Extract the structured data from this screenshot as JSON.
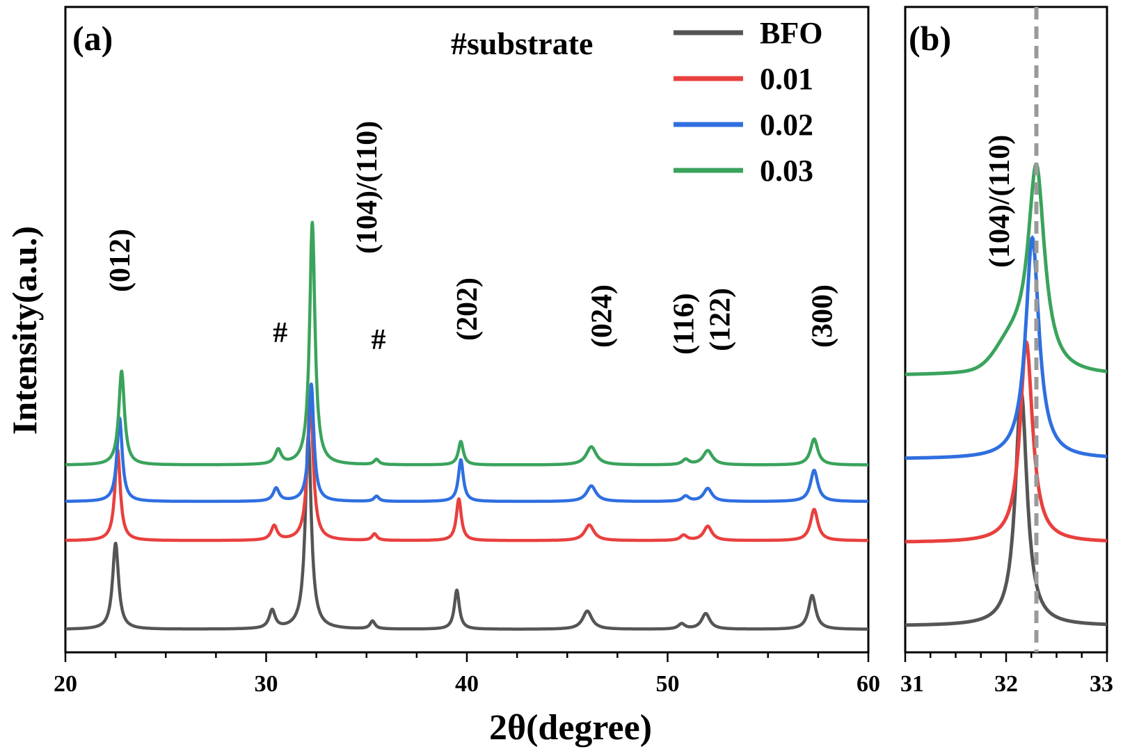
{
  "chart_data": [
    {
      "panel_label": "(a)",
      "type": "line",
      "xlabel": "2θ(degree)",
      "ylabel": "Intensity(a.u.)",
      "xlim": [
        20,
        60
      ],
      "xticks": [
        20,
        30,
        40,
        50,
        60
      ],
      "tick_labels": [
        "20",
        "30",
        "40",
        "50",
        "60"
      ],
      "yticks_shown": false,
      "grid": false,
      "legend_placement": "top-right",
      "substrate_note": "#substrate",
      "colors": {
        "BFO": "#555555",
        "0.01": "#e8403e",
        "0.02": "#2f6fe0",
        "0.03": "#3aa35c"
      },
      "series": [
        {
          "name": "BFO",
          "baseline": 0.0,
          "peaks": [
            {
              "x": 22.5,
              "height": 3.3,
              "width": 0.18
            },
            {
              "x": 30.3,
              "height": 0.7,
              "width": 0.18
            },
            {
              "x": 32.1,
              "height": 7.4,
              "width": 0.18
            },
            {
              "x": 35.3,
              "height": 0.3,
              "width": 0.15
            },
            {
              "x": 39.5,
              "height": 1.5,
              "width": 0.15
            },
            {
              "x": 46.0,
              "height": 0.7,
              "width": 0.28
            },
            {
              "x": 50.7,
              "height": 0.2,
              "width": 0.2
            },
            {
              "x": 51.9,
              "height": 0.6,
              "width": 0.25
            },
            {
              "x": 57.2,
              "height": 1.3,
              "width": 0.22
            }
          ]
        },
        {
          "name": "0.01",
          "baseline": 3.4,
          "peaks": [
            {
              "x": 22.6,
              "height": 3.5,
              "width": 0.16
            },
            {
              "x": 30.4,
              "height": 0.55,
              "width": 0.18
            },
            {
              "x": 32.2,
              "height": 5.5,
              "width": 0.17
            },
            {
              "x": 35.4,
              "height": 0.25,
              "width": 0.15
            },
            {
              "x": 39.6,
              "height": 1.6,
              "width": 0.15
            },
            {
              "x": 46.1,
              "height": 0.6,
              "width": 0.28
            },
            {
              "x": 50.8,
              "height": 0.2,
              "width": 0.2
            },
            {
              "x": 52.0,
              "height": 0.55,
              "width": 0.25
            },
            {
              "x": 57.3,
              "height": 1.2,
              "width": 0.22
            }
          ]
        },
        {
          "name": "0.02",
          "baseline": 4.9,
          "peaks": [
            {
              "x": 22.7,
              "height": 3.2,
              "width": 0.16
            },
            {
              "x": 30.5,
              "height": 0.5,
              "width": 0.18
            },
            {
              "x": 32.25,
              "height": 4.5,
              "width": 0.15
            },
            {
              "x": 35.5,
              "height": 0.2,
              "width": 0.15
            },
            {
              "x": 39.7,
              "height": 1.6,
              "width": 0.15
            },
            {
              "x": 46.2,
              "height": 0.6,
              "width": 0.28
            },
            {
              "x": 50.9,
              "height": 0.2,
              "width": 0.2
            },
            {
              "x": 52.0,
              "height": 0.5,
              "width": 0.25
            },
            {
              "x": 57.3,
              "height": 1.2,
              "width": 0.22
            }
          ]
        },
        {
          "name": "0.03",
          "baseline": 6.3,
          "peaks": [
            {
              "x": 22.8,
              "height": 3.6,
              "width": 0.17
            },
            {
              "x": 30.6,
              "height": 0.55,
              "width": 0.18
            },
            {
              "x": 32.3,
              "height": 9.3,
              "width": 0.16
            },
            {
              "x": 35.5,
              "height": 0.2,
              "width": 0.15
            },
            {
              "x": 39.7,
              "height": 0.9,
              "width": 0.15
            },
            {
              "x": 46.2,
              "height": 0.7,
              "width": 0.3
            },
            {
              "x": 50.9,
              "height": 0.2,
              "width": 0.2
            },
            {
              "x": 52.0,
              "height": 0.55,
              "width": 0.28
            },
            {
              "x": 57.3,
              "height": 1.0,
              "width": 0.22
            }
          ]
        }
      ],
      "annotations": [
        {
          "text": "(012)",
          "x": 22.7,
          "rotated": true
        },
        {
          "text": "#",
          "x": 30.7,
          "rotated": false
        },
        {
          "text": "(104)/(110)",
          "x": 35.0,
          "rotated": true
        },
        {
          "text": "#",
          "x": 35.6,
          "rotated": false
        },
        {
          "text": "(202)",
          "x": 40.0,
          "rotated": true
        },
        {
          "text": "(024)",
          "x": 46.7,
          "rotated": true
        },
        {
          "text": "(116)",
          "x": 50.8,
          "rotated": true
        },
        {
          "text": "(122)",
          "x": 52.6,
          "rotated": true
        },
        {
          "text": "(300)",
          "x": 57.7,
          "rotated": true
        }
      ]
    },
    {
      "panel_label": "(b)",
      "type": "line",
      "xlim": [
        31,
        33
      ],
      "xticks": [
        31,
        32,
        33
      ],
      "tick_labels": [
        "31",
        "32",
        "33"
      ],
      "reference_line_x": 32.3,
      "annotation": "(104)/(110)",
      "series": [
        {
          "name": "BFO",
          "baseline": 0.0,
          "peak_x": 32.15,
          "height": 5.6,
          "width": 0.07,
          "shoulder": 0.0
        },
        {
          "name": "0.01",
          "baseline": 2.0,
          "peak_x": 32.2,
          "height": 4.8,
          "width": 0.075,
          "shoulder": 0.0
        },
        {
          "name": "0.02",
          "baseline": 4.0,
          "peak_x": 32.26,
          "height": 5.3,
          "width": 0.08,
          "shoulder": 0.0
        },
        {
          "name": "0.03",
          "baseline": 6.0,
          "peak_x": 32.3,
          "height": 4.9,
          "width": 0.1,
          "shoulder": 0.6
        }
      ]
    }
  ]
}
